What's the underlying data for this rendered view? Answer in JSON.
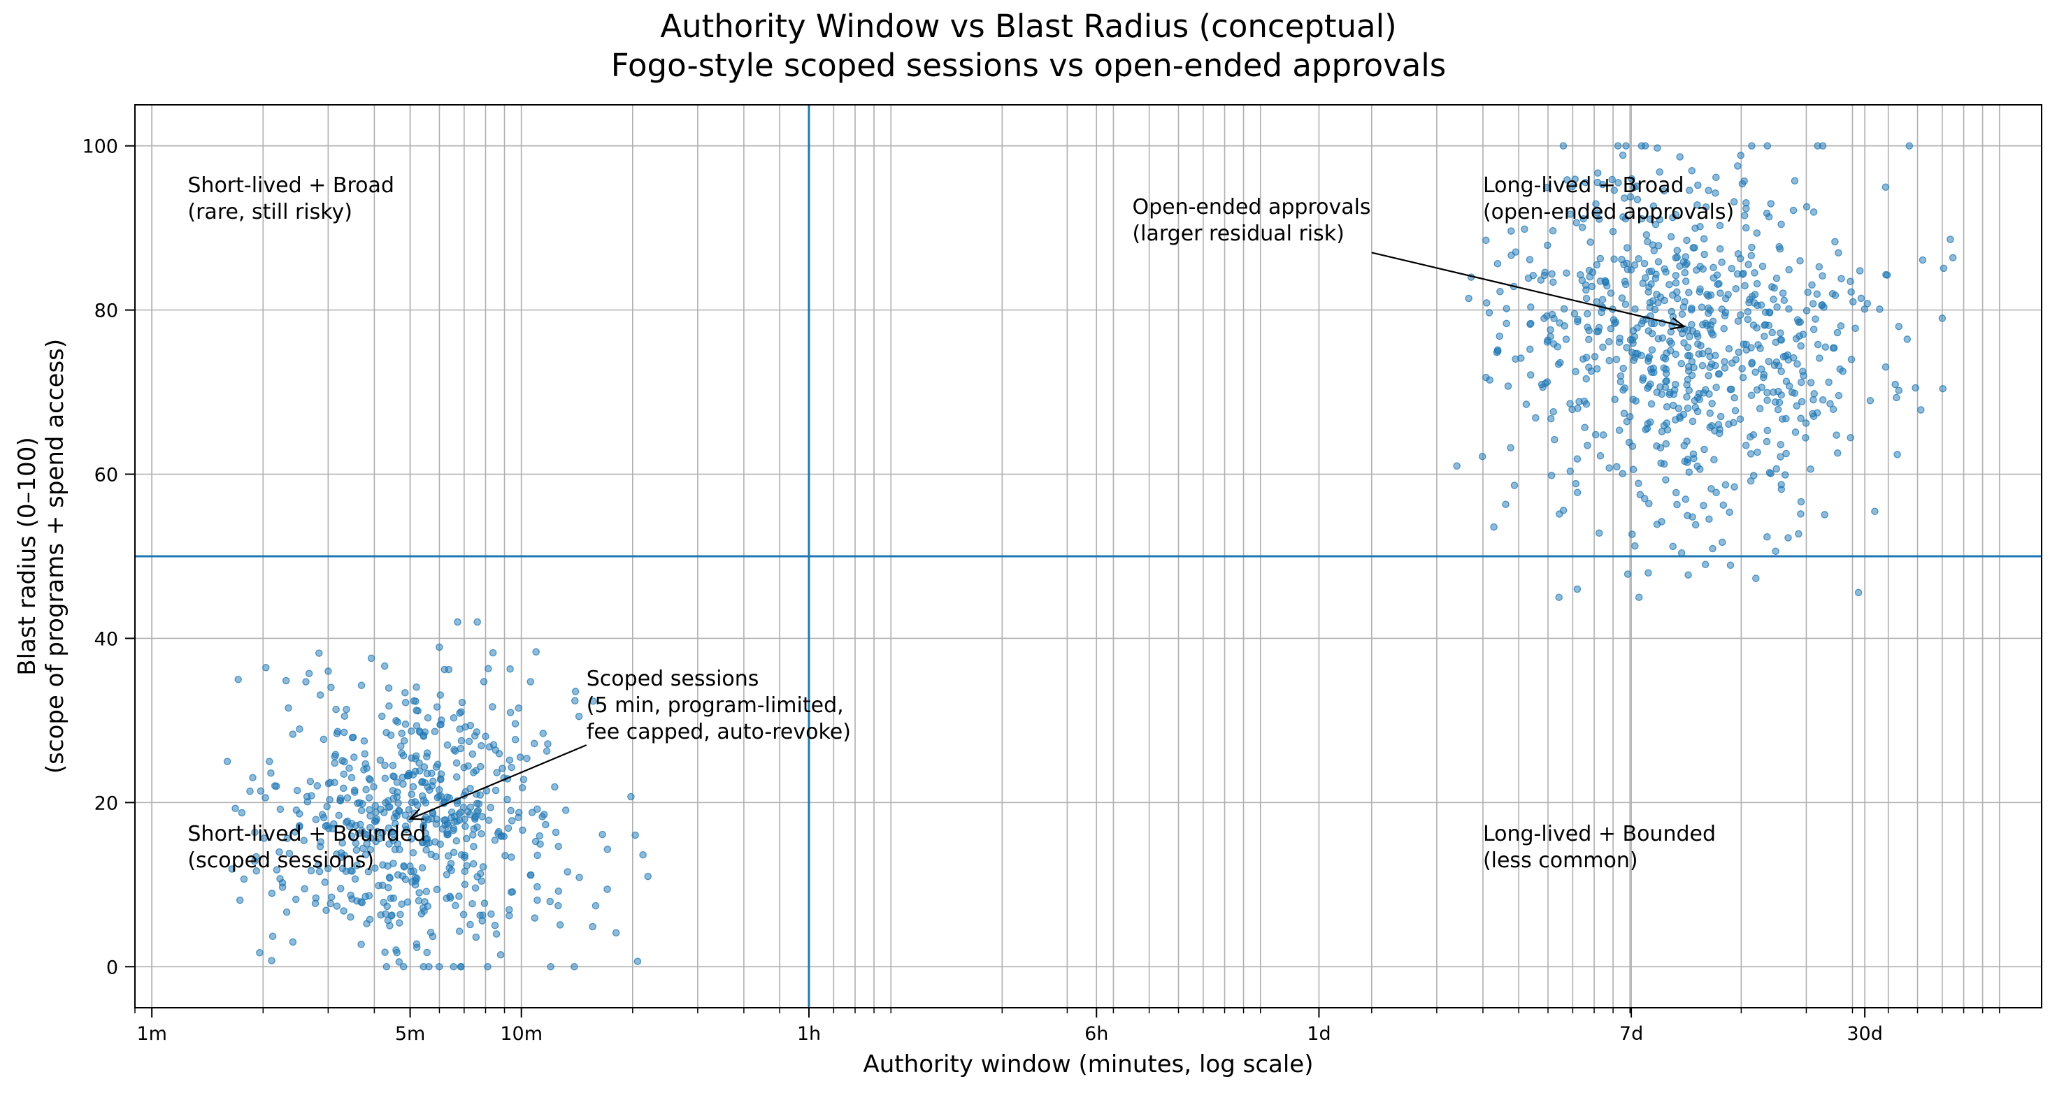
{
  "chart_data": {
    "type": "scatter",
    "title_lines": [
      "Authority Window vs Blast Radius (conceptual)",
      "Fogo-style scoped sessions vs open-ended approvals"
    ],
    "xlabel": "Authority window (minutes, log scale)",
    "ylabel_lines": [
      "Blast radius (0–100)",
      "(scope of programs + spend access)"
    ],
    "x_scale": "log",
    "x_unit": "minutes",
    "xlim": [
      0.9,
      130000
    ],
    "ylim": [
      -5,
      105
    ],
    "grid": true,
    "x_ticks": [
      {
        "value": 1,
        "label": "1m"
      },
      {
        "value": 5,
        "label": "5m"
      },
      {
        "value": 10,
        "label": "10m"
      },
      {
        "value": 60,
        "label": "1h"
      },
      {
        "value": 360,
        "label": "6h"
      },
      {
        "value": 1440,
        "label": "1d"
      },
      {
        "value": 10080,
        "label": "7d"
      },
      {
        "value": 43200,
        "label": "30d"
      }
    ],
    "y_ticks": [
      0,
      20,
      40,
      60,
      80,
      100
    ],
    "threshold_lines": {
      "x": 60,
      "y": 50,
      "color": "#1f77b4"
    },
    "series_color": "#1f77b4",
    "series": [
      {
        "cluster": "scoped-sessions",
        "center": {
          "x": 5,
          "y": 18
        },
        "count": 600,
        "x_range": [
          1.6,
          22
        ],
        "y_range": [
          0,
          42
        ],
        "sample_points": [
          [
            5,
            18
          ],
          [
            7.6,
            42
          ],
          [
            22,
            11
          ],
          [
            3,
            36
          ],
          [
            4.8,
            0
          ],
          [
            12,
            0
          ],
          [
            1.6,
            25
          ]
        ]
      },
      {
        "cluster": "open-ended-approvals",
        "center": {
          "x": 14000,
          "y": 76
        },
        "count": 750,
        "x_range": [
          3400,
          82000
        ],
        "y_range": [
          45,
          100
        ],
        "sample_points": [
          [
            14000,
            76
          ],
          [
            3400,
            61
          ],
          [
            16000,
            49
          ],
          [
            7200,
            46
          ],
          [
            70000,
            79
          ],
          [
            57000,
            100
          ],
          [
            11000,
            100
          ]
        ]
      }
    ],
    "quadrant_labels": [
      {
        "lines": [
          "Short-lived + Broad",
          "(rare, still risky)"
        ],
        "x": 1.25,
        "y": 94
      },
      {
        "lines": [
          "Long-lived + Broad",
          "(open-ended approvals)"
        ],
        "x": 4000,
        "y": 94
      },
      {
        "lines": [
          "Short-lived + Bounded",
          "(scoped sessions)"
        ],
        "x": 1.25,
        "y": 15
      },
      {
        "lines": [
          "Long-lived + Bounded",
          "(less common)"
        ],
        "x": 4000,
        "y": 15
      }
    ],
    "annotations": [
      {
        "lines": [
          "Scoped sessions",
          "(5 min, program-limited,",
          "fee capped, auto-revoke)"
        ],
        "text_x": 15,
        "text_y": 35,
        "arrow_from": [
          15,
          27
        ],
        "arrow_to": [
          5,
          18
        ]
      },
      {
        "lines": [
          "Open-ended approvals",
          "(larger residual risk)"
        ],
        "text_x": 450,
        "text_y": 92.5,
        "arrow_from": [
          2000,
          87
        ],
        "arrow_to": [
          14000,
          78
        ]
      }
    ]
  }
}
